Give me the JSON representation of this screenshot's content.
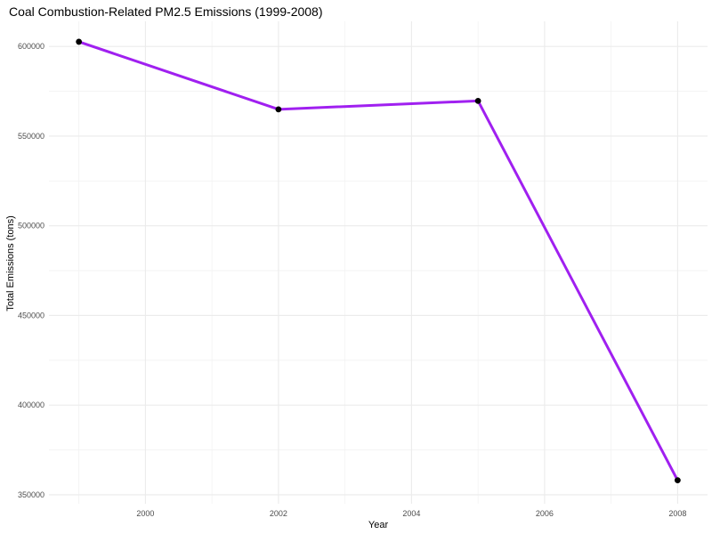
{
  "chart_data": {
    "type": "line",
    "title": "Coal Combustion-Related PM2.5 Emissions (1999-2008)",
    "xlabel": "Year",
    "ylabel": "Total Emissions (tons)",
    "x": [
      1999,
      2002,
      2005,
      2008
    ],
    "series": [
      {
        "values": [
          602624,
          564940,
          569654,
          358083
        ],
        "color": "#a020f0"
      }
    ],
    "point_color": "#000000",
    "xlim": [
      1998.55,
      2008.45
    ],
    "ylim": [
      345000,
      614000
    ],
    "x_ticks": [
      2000,
      2002,
      2004,
      2006,
      2008
    ],
    "x_tick_labels": [
      "2000",
      "2002",
      "2004",
      "2006",
      "2008"
    ],
    "y_ticks": [
      350000,
      400000,
      450000,
      500000,
      550000,
      600000
    ],
    "y_tick_labels": [
      "350000",
      "400000",
      "450000",
      "500000",
      "550000",
      "600000"
    ],
    "grid": true,
    "legend": "none"
  }
}
